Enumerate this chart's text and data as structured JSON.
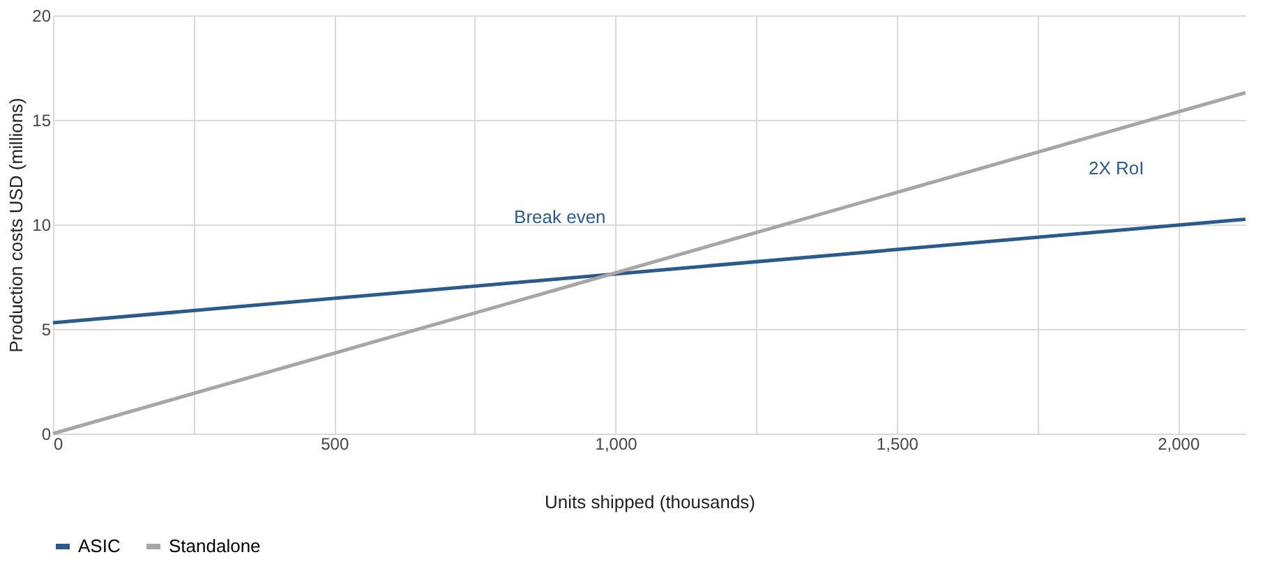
{
  "chart_data": {
    "type": "line",
    "xlabel": "Units shipped (thousands)",
    "ylabel": "Production costs USD (millions)",
    "series": [
      {
        "name": "ASIC",
        "color": "#2b5b8c",
        "values": [
          5.3,
          10.25
        ]
      },
      {
        "name": "Standalone",
        "color": "#a6a6a6",
        "values": [
          0,
          16.3
        ]
      }
    ],
    "x": [
      0,
      2120
    ],
    "xlim": [
      0,
      2120
    ],
    "xticks": [
      0,
      {
        "value": 250,
        "label": null
      },
      500,
      {
        "value": 750,
        "label": null
      },
      {
        "value": 1000,
        "label": "1,000"
      },
      {
        "value": 1250,
        "label": null
      },
      {
        "value": 1500,
        "label": "1,500"
      },
      {
        "value": 1750,
        "label": null
      },
      {
        "value": 2000,
        "label": "2,000"
      }
    ],
    "ylim": [
      0,
      20
    ],
    "yticks": [
      0,
      5,
      10,
      15,
      20
    ],
    "annotations": [
      "Break even",
      "2X RoI"
    ],
    "grid": true,
    "legend": "bottom",
    "marker": "none",
    "line_style": "solid"
  }
}
